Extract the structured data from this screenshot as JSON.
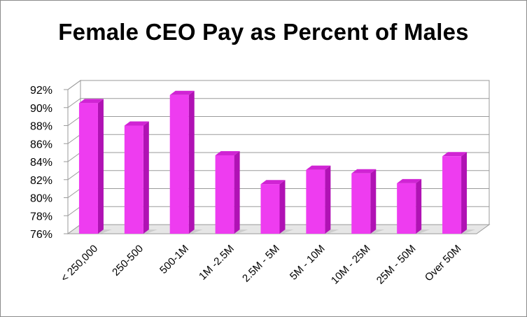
{
  "chart_data": {
    "type": "bar",
    "title": "Female CEO Pay as Percent of Males",
    "categories": [
      "< 250,000",
      "250-500",
      "500-1M",
      "1M -2.5M",
      "2.5M - 5M",
      "5M - 10M",
      "10M - 25M",
      "25M - 50M",
      "Over 50M"
    ],
    "values": [
      90.5,
      88.0,
      91.4,
      84.7,
      81.5,
      83.1,
      82.7,
      81.6,
      84.6
    ],
    "ylim": [
      76,
      92
    ],
    "yticks": [
      "76%",
      "78%",
      "80%",
      "82%",
      "84%",
      "86%",
      "88%",
      "90%",
      "92%"
    ],
    "xlabel": "",
    "ylabel": "",
    "grid": true,
    "bar_color": "#ee3cf0",
    "bar_side_color": "#b012b4",
    "bar_top_color": "#d024d4"
  }
}
